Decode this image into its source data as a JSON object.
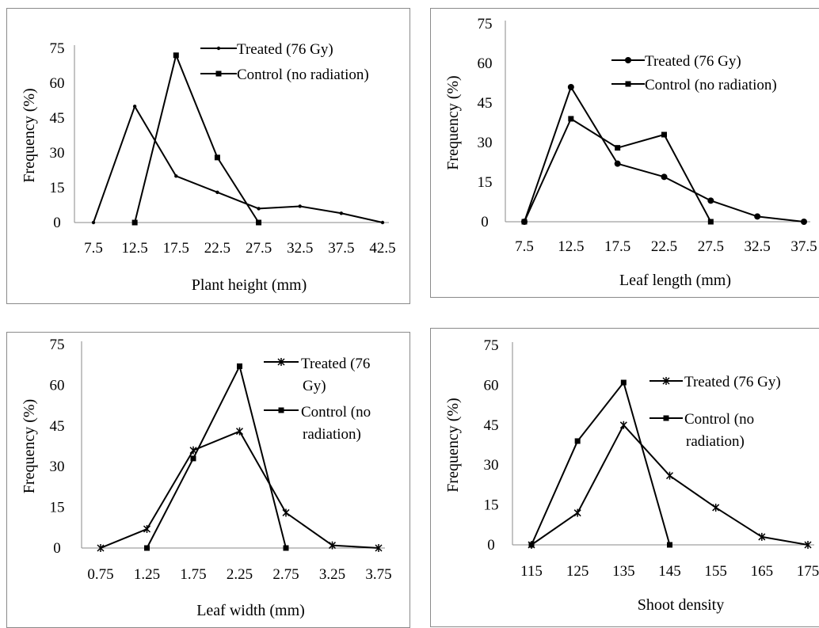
{
  "chart_data": [
    {
      "type": "line",
      "xlabel": "Plant height (mm)",
      "ylabel": "Frequency (%)",
      "categories": [
        "7.5",
        "12.5",
        "17.5",
        "22.5",
        "27.5",
        "32.5",
        "37.5",
        "42.5"
      ],
      "ylim": [
        0,
        75
      ],
      "yticks": [
        "0",
        "15",
        "30",
        "45",
        "60",
        "75"
      ],
      "legend_position": "top-right",
      "grid": false,
      "series": [
        {
          "name": "Treated (76 Gy)",
          "marker": "dot",
          "x": [
            "7.5",
            "12.5",
            "17.5",
            "22.5",
            "27.5",
            "32.5",
            "37.5",
            "42.5"
          ],
          "values": [
            0,
            50,
            20,
            13,
            6,
            7,
            4,
            0
          ]
        },
        {
          "name": "Control (no radiation)",
          "marker": "square",
          "x": [
            "12.5",
            "17.5",
            "22.5",
            "27.5"
          ],
          "values": [
            0,
            72,
            28,
            0
          ]
        }
      ]
    },
    {
      "type": "line",
      "xlabel": "Leaf length (mm)",
      "ylabel": "Frequency (%)",
      "categories": [
        "7.5",
        "12.5",
        "17.5",
        "22.5",
        "27.5",
        "32.5",
        "37.5"
      ],
      "ylim": [
        0,
        75
      ],
      "yticks": [
        "0",
        "15",
        "30",
        "45",
        "60",
        "75"
      ],
      "legend_position": "top-right",
      "grid": false,
      "series": [
        {
          "name": "Treated (76 Gy)",
          "marker": "circle",
          "x": [
            "7.5",
            "12.5",
            "17.5",
            "22.5",
            "27.5",
            "32.5",
            "37.5"
          ],
          "values": [
            0,
            51,
            22,
            17,
            8,
            2,
            0
          ]
        },
        {
          "name": "Control (no radiation)",
          "marker": "square",
          "x": [
            "7.5",
            "12.5",
            "17.5",
            "22.5",
            "27.5"
          ],
          "values": [
            0,
            39,
            28,
            33,
            0
          ]
        }
      ]
    },
    {
      "type": "line",
      "xlabel": "Leaf width (mm)",
      "ylabel": "Frequency (%)",
      "categories": [
        "0.75",
        "1.25",
        "1.75",
        "2.25",
        "2.75",
        "3.25",
        "3.75"
      ],
      "ylim": [
        0,
        75
      ],
      "yticks": [
        "0",
        "15",
        "30",
        "45",
        "60",
        "75"
      ],
      "legend_position": "top-right",
      "grid": false,
      "series": [
        {
          "name": "Treated (76 Gy)",
          "legend_lines": [
            "Treated (76",
            "Gy)"
          ],
          "marker": "star",
          "x": [
            "0.75",
            "1.25",
            "1.75",
            "2.25",
            "2.75",
            "3.25",
            "3.75"
          ],
          "values": [
            0,
            7,
            36,
            43,
            13,
            1,
            0
          ]
        },
        {
          "name": "Control (no radiation)",
          "legend_lines": [
            "Control (no",
            "radiation)"
          ],
          "marker": "square",
          "x": [
            "1.25",
            "1.75",
            "2.25",
            "2.75"
          ],
          "values": [
            0,
            33,
            67,
            0
          ]
        }
      ]
    },
    {
      "type": "line",
      "xlabel": "Shoot density",
      "ylabel": "Frequency (%)",
      "categories": [
        "115",
        "125",
        "135",
        "145",
        "155",
        "165",
        "175"
      ],
      "ylim": [
        0,
        75
      ],
      "yticks": [
        "0",
        "15",
        "30",
        "45",
        "60",
        "75"
      ],
      "legend_position": "top-right",
      "grid": false,
      "series": [
        {
          "name": "Treated (76 Gy)",
          "marker": "star",
          "x": [
            "115",
            "125",
            "135",
            "145",
            "155",
            "165",
            "175"
          ],
          "values": [
            0,
            12,
            45,
            26,
            14,
            3,
            0
          ]
        },
        {
          "name": "Control (no radiation)",
          "legend_lines": [
            "Control (no",
            "radiation)"
          ],
          "marker": "square",
          "x": [
            "115",
            "125",
            "135",
            "145"
          ],
          "values": [
            0,
            39,
            61,
            0
          ]
        }
      ]
    }
  ]
}
